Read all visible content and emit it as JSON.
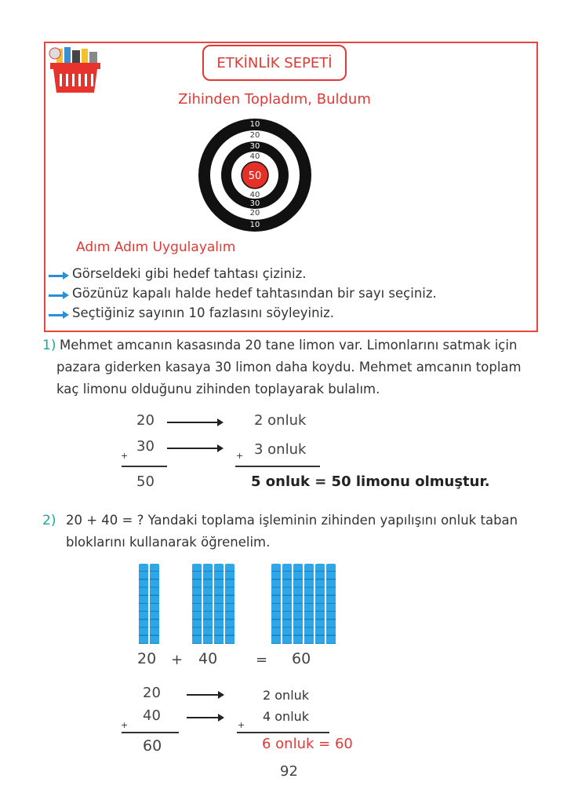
{
  "activity": {
    "title": "ETKİNLİK SEPETİ",
    "subtitle": "Zihinden Topladım, Buldum",
    "basket_icon": "shopping-basket-icon",
    "target": {
      "rings": [
        "10",
        "20",
        "30",
        "40"
      ],
      "center": "50"
    },
    "steps_title": "Adım Adım Uygulayalım",
    "steps": [
      "Görseldeki gibi hedef tahtası çiziniz.",
      "Gözünüz kapalı halde hedef tahtasından bir sayı seçiniz.",
      "Seçtiğiniz sayının 10 fazlasını söyleyiniz."
    ]
  },
  "q1": {
    "num": "1)",
    "lines": [
      "Mehmet amcanın kasasında 20 tane limon var. Limonlarını satmak için",
      "pazara giderken kasaya 30 limon daha koydu. Mehmet amcanın toplam",
      "kaç limonu olduğunu zihinden toplayarak bulalım."
    ],
    "a": "20",
    "b": "30",
    "sum": "50",
    "plus": "+",
    "ra": "2 onluk",
    "rb": "3 onluk",
    "rsum": "5 onluk = 50 limonu olmuştur."
  },
  "q2": {
    "num": "2)",
    "lines": [
      "20 + 40 = ?  Yandaki toplama işleminin zihinden yapılışını onluk taban",
      "bloklarını kullanarak öğrenelim."
    ],
    "blocks": {
      "a": "20",
      "b": "40",
      "c": "60",
      "plus": "+",
      "eq": "="
    },
    "a": "20",
    "b": "40",
    "sum": "60",
    "plus": "+",
    "ra": "2 onluk",
    "rb": "4 onluk",
    "rsum": "6 onluk = 60"
  },
  "page_number": "92"
}
